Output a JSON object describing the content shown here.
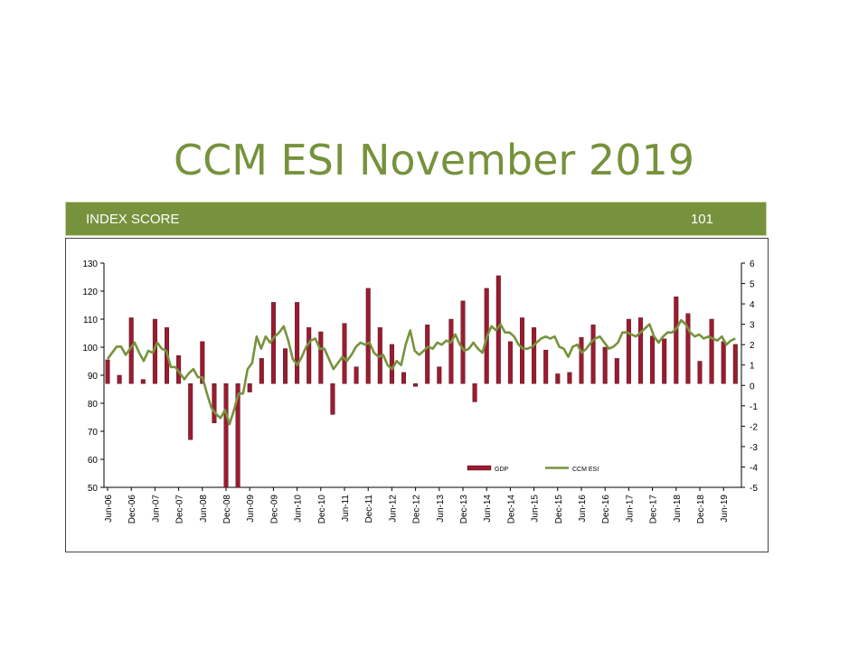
{
  "page": {
    "title": "CCM ESI November 2019",
    "banner": {
      "label": "INDEX SCORE",
      "value": "101"
    }
  },
  "colors": {
    "accent": "#76923c",
    "gdp": "#9b1b30",
    "esi": "#77933c"
  },
  "chart_data": {
    "type": "bar+line",
    "title": "",
    "xlabel": "",
    "ylabel": "",
    "left_axis": {
      "min": 50,
      "max": 130,
      "step": 10,
      "baseline": 87
    },
    "right_axis": {
      "min": -5,
      "max": 6,
      "step": 1
    },
    "x_tick_labels": [
      "Jun-06",
      "Dec-06",
      "Jun-07",
      "Dec-07",
      "Jun-08",
      "Dec-08",
      "Jun-09",
      "Dec-09",
      "Jun-10",
      "Dec-10",
      "Jun-11",
      "Dec-11",
      "Jun-12",
      "Dec-12",
      "Jun-13",
      "Dec-13",
      "Jun-14",
      "Dec-14",
      "Jun-15",
      "Dec-15",
      "Jun-16",
      "Dec-16",
      "Jun-17",
      "Dec-17",
      "Jun-18",
      "Dec-18",
      "Jun-19"
    ],
    "legend": {
      "position": "bottom-center",
      "entries": [
        "GDP",
        "CCM ESI"
      ]
    },
    "series": [
      {
        "name": "GDP",
        "type": "bar",
        "axis": "left",
        "values": [
          95.5,
          90,
          110.5,
          88.5,
          110,
          107,
          97,
          67,
          102,
          73,
          50,
          50,
          84,
          96,
          116,
          99.5,
          116,
          107,
          105.5,
          76,
          108.5,
          93,
          121,
          107,
          101,
          91,
          86,
          108,
          93,
          110,
          116.5,
          80.5,
          121,
          125.5,
          102,
          110.5,
          107,
          99,
          90.5,
          91,
          103.5,
          108,
          100,
          96,
          110,
          110.5,
          104,
          103,
          118,
          112,
          95,
          110,
          102,
          101
        ]
      },
      {
        "name": "CCM ESI",
        "type": "line",
        "axis": "right",
        "values": [
          1.3,
          1.6,
          1.9,
          1.9,
          1.5,
          1.8,
          2.1,
          1.6,
          1.2,
          1.7,
          1.6,
          2.1,
          1.8,
          1.7,
          0.9,
          0.9,
          0.6,
          0.3,
          0.6,
          0.8,
          0.4,
          0.4,
          -0.4,
          -1.1,
          -1.4,
          -1.6,
          -1.2,
          -1.9,
          -1.2,
          -0.4,
          -0.4,
          0.8,
          1.1,
          2.4,
          1.8,
          2.4,
          2.1,
          2.4,
          2.6,
          2.9,
          2.2,
          1.3,
          1.0,
          1.4,
          1.9,
          2.2,
          2.3,
          1.8,
          1.8,
          1.3,
          0.8,
          1.1,
          1.4,
          1.2,
          1.5,
          1.9,
          2.1,
          2.0,
          2.1,
          1.6,
          1.4,
          1.5,
          1.0,
          0.8,
          1.2,
          1.0,
          2.0,
          2.7,
          1.7,
          1.5,
          1.7,
          1.9,
          1.8,
          2.1,
          2.0,
          2.2,
          2.1,
          2.5,
          2.0,
          1.7,
          1.8,
          2.1,
          1.8,
          1.6,
          2.4,
          2.9,
          2.7,
          3.0,
          2.6,
          2.6,
          2.4,
          2.0,
          1.8,
          1.8,
          1.9,
          2.1,
          2.3,
          2.4,
          2.3,
          2.4,
          1.9,
          1.8,
          1.4,
          1.9,
          2.0,
          1.6,
          1.8,
          2.1,
          2.3,
          2.4,
          2.1,
          1.8,
          1.9,
          2.1,
          2.6,
          2.6,
          2.5,
          2.4,
          2.6,
          2.8,
          3.0,
          2.4,
          2.1,
          2.4,
          2.6,
          2.6,
          2.8,
          3.2,
          3.0,
          2.6,
          2.4,
          2.5,
          2.3,
          2.4,
          2.3,
          2.2,
          2.4,
          2.0,
          2.2,
          2.3
        ]
      }
    ]
  }
}
